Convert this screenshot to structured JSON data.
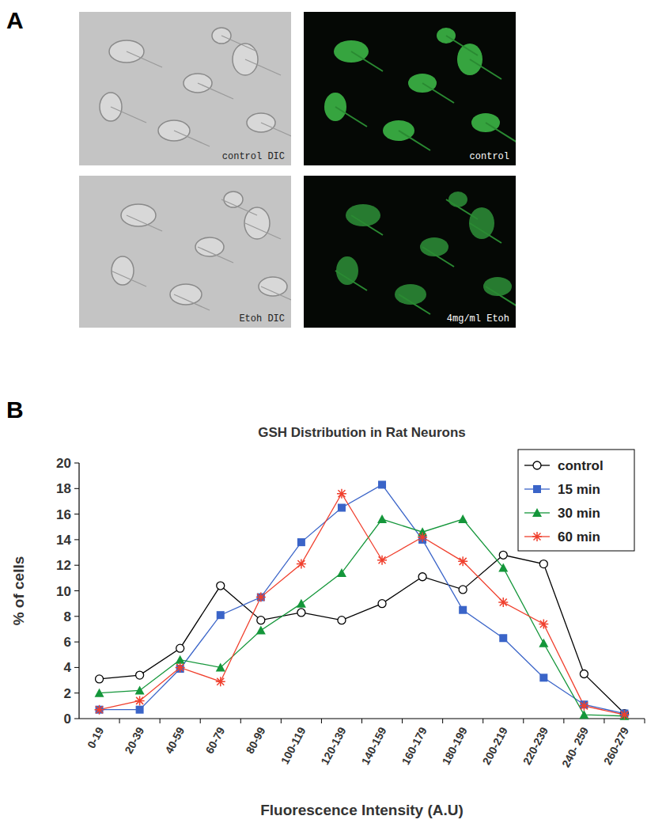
{
  "figure": {
    "panel_labels": [
      "A",
      "B"
    ],
    "images": [
      {
        "label": "control DIC",
        "kind": "dic"
      },
      {
        "label": "control",
        "kind": "fluorescence"
      },
      {
        "label": "Etoh DIC",
        "kind": "dic"
      },
      {
        "label": "4mg/ml Etoh",
        "kind": "fluorescence"
      }
    ]
  },
  "chart_data": {
    "type": "line",
    "title": "GSH Distribution in Rat Neurons",
    "x_label": "Fluorescence Intensity (A.U)",
    "y_label": "% of cells",
    "categories": [
      "0-19",
      "20-39",
      "40-59",
      "60-79",
      "80-99",
      "100-119",
      "120-139",
      "140-159",
      "160-179",
      "180-199",
      "200-219",
      "220-239",
      "240- 259",
      "260-279"
    ],
    "series": [
      {
        "name": "control",
        "color": "#000000",
        "marker": "circle",
        "values": [
          3.1,
          3.4,
          5.5,
          10.4,
          7.7,
          8.3,
          7.7,
          9.0,
          11.1,
          10.1,
          12.8,
          12.1,
          3.5,
          0.4
        ]
      },
      {
        "name": "15 min",
        "color": "#3a64c8",
        "marker": "square",
        "values": [
          0.7,
          0.7,
          3.9,
          8.1,
          9.5,
          13.8,
          16.5,
          18.3,
          14.0,
          8.5,
          6.3,
          3.2,
          1.1,
          0.4
        ]
      },
      {
        "name": "30 min",
        "color": "#14963a",
        "marker": "triangle",
        "values": [
          2.0,
          2.2,
          4.6,
          4.0,
          6.9,
          9.0,
          11.4,
          15.6,
          14.6,
          15.6,
          11.8,
          5.9,
          0.3,
          0.2
        ]
      },
      {
        "name": "60 min",
        "color": "#f0402e",
        "marker": "asterisk",
        "values": [
          0.7,
          1.4,
          4.0,
          2.9,
          9.5,
          12.1,
          17.6,
          12.4,
          14.2,
          12.3,
          9.1,
          7.4,
          1.0,
          0.3
        ]
      }
    ],
    "ylim": [
      0,
      20
    ],
    "yticks": [
      0,
      2,
      4,
      6,
      8,
      10,
      12,
      14,
      16,
      18,
      20
    ],
    "grid": false,
    "legend": "upper right"
  }
}
